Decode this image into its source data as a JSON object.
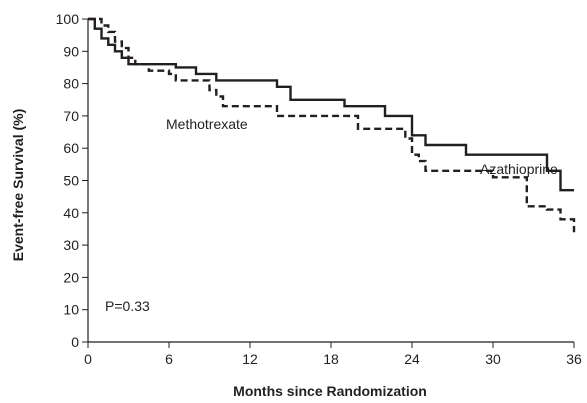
{
  "chart_data": {
    "type": "line",
    "step": true,
    "xlabel": "Months since Randomization",
    "ylabel": "Event-free Survival (%)",
    "xlim": [
      0,
      36
    ],
    "ylim": [
      0,
      100
    ],
    "xticks": [
      0,
      6,
      12,
      18,
      24,
      30,
      36
    ],
    "yticks": [
      0,
      10,
      20,
      30,
      40,
      50,
      60,
      70,
      80,
      90,
      100
    ],
    "grid": false,
    "annotations": [
      {
        "text": "P=0.33"
      }
    ],
    "series": [
      {
        "name": "Azathioprine",
        "line_style": "solid",
        "x": [
          0,
          0.5,
          1.0,
          1.5,
          2.0,
          2.5,
          3.0,
          6.5,
          8.0,
          9.5,
          14.0,
          15.0,
          19.0,
          22.0,
          24.0,
          25.0,
          28.0,
          34.0,
          35.0,
          36.0
        ],
        "y": [
          100,
          97,
          94,
          92,
          90,
          88,
          86,
          85,
          83,
          81,
          79,
          75,
          73,
          70,
          64,
          61,
          58,
          53,
          47,
          47
        ]
      },
      {
        "name": "Methotrexate",
        "line_style": "dashed",
        "x": [
          0,
          1.0,
          1.5,
          2.0,
          2.5,
          3.0,
          3.5,
          4.5,
          6.0,
          6.5,
          9.0,
          9.5,
          10.0,
          14.0,
          20.0,
          23.5,
          24.0,
          24.5,
          25.0,
          30.0,
          32.5,
          34.0,
          35.0,
          36.0
        ],
        "y": [
          100,
          98,
          96,
          93,
          91,
          88,
          86,
          84,
          83,
          81,
          78,
          76,
          73,
          70,
          66,
          63,
          58,
          56,
          53,
          51,
          42,
          41,
          38,
          34
        ]
      }
    ]
  }
}
